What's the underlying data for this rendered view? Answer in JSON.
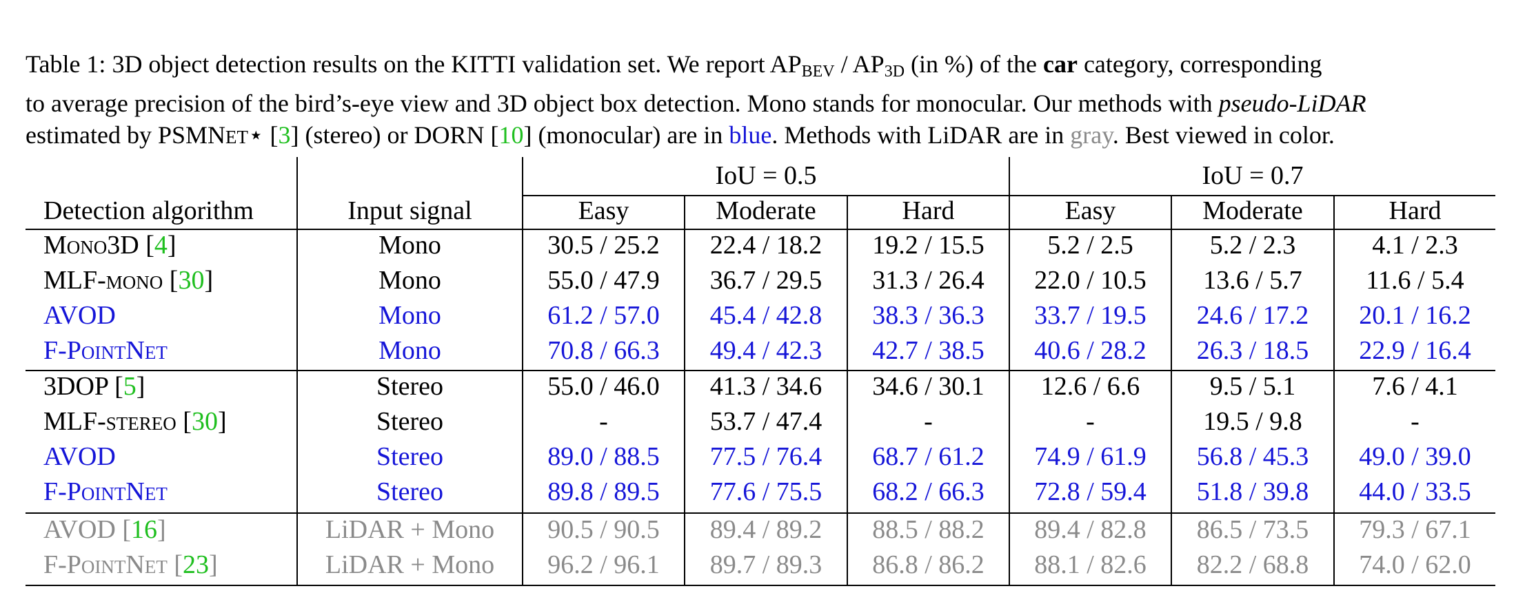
{
  "caption": {
    "line1_a": "Table 1:  3D object detection results on the KITTI validation set.  We report AP",
    "line1_bev": "BEV",
    "line1_b": " / AP",
    "line1_3d": "3D",
    "line1_c": " (in %) of the ",
    "line1_car": "car",
    "line1_d": " category, corresponding",
    "line2_a": "to average precision of the bird’s-eye view and 3D object box detection.  Mono stands for monocular.  Our methods with ",
    "line2_pl": "pseudo-LiDAR",
    "line3_a": "estimated by PSMN",
    "line3_sc": "ET",
    "line3_star": "⋆ [",
    "line3_ref1": "3",
    "line3_b": "] (stereo) or DORN [",
    "line3_ref2": "10",
    "line3_c": "] (monocular) are in ",
    "line3_blue": "blue",
    "line3_d": ". Methods with LiDAR are in ",
    "line3_gray": "gray",
    "line3_e": ". Best viewed in color."
  },
  "table": {
    "iou_groups": [
      "IoU = 0.5",
      "IoU = 0.7"
    ],
    "col_algo": "Detection algorithm",
    "col_input": "Input signal",
    "difficulties": [
      "Easy",
      "Moderate",
      "Hard",
      "Easy",
      "Moderate",
      "Hard"
    ],
    "rows": [
      {
        "name": "Mono3D",
        "ref": "4",
        "input": "Mono",
        "style": "black",
        "values": [
          "30.5 / 25.2",
          "22.4 / 18.2",
          "19.2 / 15.5",
          "5.2 / 2.5",
          "5.2 / 2.3",
          "4.1 / 2.3"
        ]
      },
      {
        "name": "MLF-mono",
        "ref": "30",
        "input": "Mono",
        "style": "black",
        "values": [
          "55.0 / 47.9",
          "36.7 / 29.5",
          "31.3 / 26.4",
          "22.0 / 10.5",
          "13.6 / 5.7",
          "11.6 / 5.4"
        ]
      },
      {
        "name": "AVOD",
        "ref": "",
        "input": "Mono",
        "style": "blue",
        "values": [
          "61.2 / 57.0",
          "45.4 / 42.8",
          "38.3 / 36.3",
          "33.7 / 19.5",
          "24.6 / 17.2",
          "20.1 / 16.2"
        ]
      },
      {
        "name": "F-PointNet",
        "ref": "",
        "input": "Mono",
        "style": "blue",
        "values": [
          "70.8 / 66.3",
          "49.4 / 42.3",
          "42.7 / 38.5",
          "40.6 / 28.2",
          "26.3 / 18.5",
          "22.9 / 16.4"
        ]
      },
      {
        "name": "3DOP",
        "ref": "5",
        "input": "Stereo",
        "style": "black",
        "values": [
          "55.0 / 46.0",
          "41.3 / 34.6",
          "34.6 / 30.1",
          "12.6 / 6.6",
          "9.5 / 5.1",
          "7.6 / 4.1"
        ]
      },
      {
        "name": "MLF-stereo",
        "ref": "30",
        "input": "Stereo",
        "style": "black",
        "values": [
          "-",
          "53.7 / 47.4",
          "-",
          "-",
          "19.5 / 9.8",
          "-"
        ]
      },
      {
        "name": "AVOD",
        "ref": "",
        "input": "Stereo",
        "style": "blue",
        "values": [
          "89.0 / 88.5",
          "77.5 / 76.4",
          "68.7 / 61.2",
          "74.9 / 61.9",
          "56.8 / 45.3",
          "49.0 / 39.0"
        ]
      },
      {
        "name": "F-PointNet",
        "ref": "",
        "input": "Stereo",
        "style": "blue",
        "values": [
          "89.8 / 89.5",
          "77.6 / 75.5",
          "68.2 / 66.3",
          "72.8 / 59.4",
          "51.8 / 39.8",
          "44.0 / 33.5"
        ]
      },
      {
        "name": "AVOD",
        "ref": "16",
        "input": "LiDAR + Mono",
        "style": "gray",
        "values": [
          "90.5 / 90.5",
          "89.4 / 89.2",
          "88.5 / 88.2",
          "89.4 / 82.8",
          "86.5 / 73.5",
          "79.3 / 67.1"
        ]
      },
      {
        "name": "F-PointNet",
        "ref": "23",
        "input": "LiDAR + Mono",
        "style": "gray",
        "values": [
          "96.2 / 96.1",
          "89.7 / 89.3",
          "86.8 / 86.2",
          "88.1 / 82.6",
          "82.2 / 68.8",
          "74.0 / 62.0"
        ]
      }
    ]
  },
  "colors": {
    "blue": "#1515d8",
    "gray": "#8a8a8a",
    "ref_green": "#1fbf1f"
  }
}
